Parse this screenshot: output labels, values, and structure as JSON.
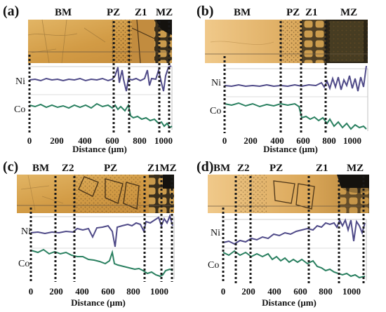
{
  "figure": {
    "colors": {
      "ni": "#4f4a88",
      "co": "#2a8060",
      "boundary": "#1a1a1a",
      "micro_base": "#d9a64e",
      "micro_dark": "#1c1a14"
    },
    "panels": [
      {
        "id": "a",
        "label": "(a)",
        "zones": [
          "BM",
          "PZ",
          "Z1",
          "MZ"
        ],
        "ticks": [
          "0",
          "200",
          "400",
          "600",
          "800",
          "1000"
        ],
        "axis_title": "Distance (μm)",
        "ni_label": "Ni",
        "co_label": "Co"
      },
      {
        "id": "b",
        "label": "(b)",
        "zones": [
          "BM",
          "PZ",
          "Z1",
          "MZ"
        ],
        "ticks": [
          "0",
          "200",
          "400",
          "600",
          "800",
          "1000"
        ],
        "axis_title": "Distance (μm)",
        "ni_label": "Ni",
        "co_label": "Co"
      },
      {
        "id": "c",
        "label": "(c)",
        "zones": [
          "BM",
          "Z2",
          "PZ",
          "Z1MZ"
        ],
        "ticks": [
          "0",
          "200",
          "400",
          "600",
          "800",
          "1000"
        ],
        "axis_title": "Distance (μm)",
        "ni_label": "Ni",
        "co_label": "Co"
      },
      {
        "id": "d",
        "label": "(d)",
        "zones": [
          "BM",
          "Z2",
          "PZ",
          "Z1",
          "MZ"
        ],
        "ticks": [
          "0",
          "200",
          "400",
          "600",
          "800",
          "1000"
        ],
        "axis_title": "Distance (μm)",
        "ni_label": "Ni",
        "co_label": "Co"
      }
    ]
  }
}
